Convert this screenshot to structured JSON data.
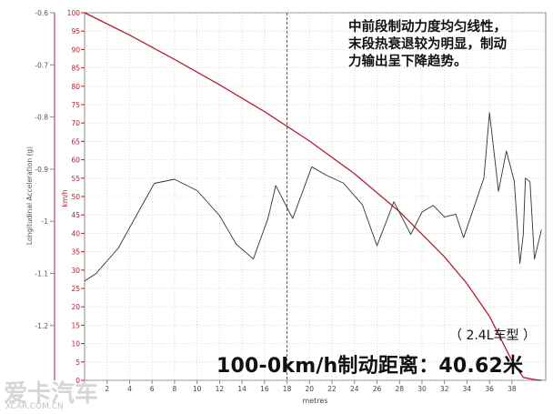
{
  "chart_data": {
    "type": "line",
    "xlabel": "metres",
    "y_left_label": "Longitudinal Acceleration (g)",
    "y_right_label": "km/h",
    "x_ticks": [
      2,
      4,
      6,
      8,
      10,
      12,
      14,
      16,
      18,
      20,
      22,
      24,
      26,
      28,
      30,
      32,
      34,
      36,
      38
    ],
    "xlim": [
      0,
      41
    ],
    "y_left_ticks": [
      "-0.6",
      "-0.7",
      "-0.8",
      "-0.9",
      "-1",
      "-1.1",
      "-1.2"
    ],
    "y_left_range": [
      -0.6,
      -1.3
    ],
    "y_right_ticks": [
      "100",
      "95",
      "90",
      "85",
      "80",
      "75",
      "70",
      "65",
      "60",
      "55",
      "50",
      "45",
      "40",
      "35",
      "30",
      "25",
      "20",
      "15",
      "10",
      "5",
      "0"
    ],
    "ylim_right": [
      0,
      100
    ],
    "grid": true,
    "marker_line_x": 18,
    "series": [
      {
        "axis": "right",
        "color": "#b02030",
        "x": [
          0,
          4,
          8,
          12,
          16,
          20,
          24,
          28,
          32,
          34,
          36,
          38,
          39,
          40,
          40.62
        ],
        "y": [
          100,
          93.9,
          87.3,
          80.4,
          73.1,
          65.1,
          56.2,
          45.9,
          33.6,
          26.3,
          17.4,
          5.3,
          0.8,
          0.2,
          0
        ]
      },
      {
        "axis": "right",
        "color": "#333333",
        "x": [
          0,
          1,
          3,
          5,
          6.2,
          8,
          10,
          12,
          13.5,
          15,
          16.3,
          17,
          18.5,
          20.2,
          21.5,
          23,
          24.7,
          26,
          27.5,
          29,
          30,
          31,
          32,
          33,
          33.7,
          34.5,
          35.5,
          36,
          36.8,
          37.5,
          38.2,
          38.7,
          39,
          39.2,
          39.6,
          40,
          40.62
        ],
        "y": [
          27,
          29,
          36,
          47,
          53.6,
          54.7,
          51.6,
          44.8,
          37,
          33,
          44,
          53,
          44,
          58.1,
          55.8,
          53.7,
          47.8,
          36.6,
          48.6,
          39.7,
          45.8,
          47.6,
          44.4,
          45.2,
          38.8,
          46,
          55,
          72.8,
          51.4,
          62.4,
          54.2,
          31.8,
          39.6,
          55,
          54,
          33,
          41
        ]
      }
    ]
  },
  "annotation": {
    "line1": "中前段制动力度均匀线性，",
    "line2": "末段热衰退较为明显，制动",
    "line3": "力输出呈下降趋势。"
  },
  "model_tag": "（ 2.4L车型 ）",
  "headline": "100-0km/h制动距离：40.62米",
  "watermark": {
    "text": "爱卡汽车",
    "url": "XCAR.COM.CN"
  }
}
